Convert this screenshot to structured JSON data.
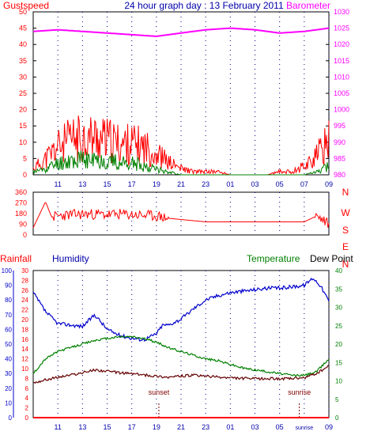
{
  "header": {
    "left": "Gustspeed",
    "title": "24 hour graph day : 13 February 2011",
    "right": "Barometer"
  },
  "colors": {
    "gust": "#ff0000",
    "wind": "#008000",
    "wind2": "#0000ff",
    "barometer": "#ff00ff",
    "direction": "#ff0000",
    "humidity": "#0000cc",
    "temperature": "#008000",
    "dewpoint": "#660000",
    "rainfall": "#ff0000",
    "frame": "#000000",
    "grid": "#000080",
    "label_red": "#ff0000",
    "label_blue": "#0000aa",
    "label_green": "#008000",
    "sun": "#800000"
  },
  "chart_data": [
    {
      "type": "line",
      "title": "24 hour graph day : 13 February 2011",
      "x_hours_start": 9,
      "x_ticks": [
        "11",
        "13",
        "15",
        "17",
        "19",
        "21",
        "23",
        "01",
        "03",
        "05",
        "07",
        "09"
      ],
      "left_axis": {
        "label": "Gustspeed",
        "ylim": [
          0,
          50
        ],
        "ticks": [
          "0",
          "5",
          "10",
          "15",
          "20",
          "25",
          "30",
          "35",
          "40",
          "45",
          "50"
        ]
      },
      "right_axis": {
        "label": "Barometer",
        "ylim": [
          980,
          1030
        ],
        "ticks": [
          "980",
          "985",
          "990",
          "995",
          "1000",
          "1005",
          "1010",
          "1015",
          "1020",
          "1025",
          "1030"
        ]
      },
      "series": [
        {
          "name": "Barometer",
          "axis": "right",
          "points": [
            [
              0,
              1024
            ],
            [
              2,
              1024.5
            ],
            [
              4,
              1024
            ],
            [
              6,
              1023.5
            ],
            [
              8,
              1023
            ],
            [
              10,
              1022.5
            ],
            [
              12,
              1023.5
            ],
            [
              14,
              1024.5
            ],
            [
              16,
              1025
            ],
            [
              18,
              1024.5
            ],
            [
              20,
              1023.5
            ],
            [
              22,
              1024
            ],
            [
              24,
              1025
            ]
          ]
        },
        {
          "name": "Gustspeed",
          "axis": "left",
          "points": [
            [
              0,
              2
            ],
            [
              1,
              5
            ],
            [
              2,
              9
            ],
            [
              3,
              11
            ],
            [
              4,
              12
            ],
            [
              5,
              12
            ],
            [
              6,
              11
            ],
            [
              7,
              10
            ],
            [
              8,
              10
            ],
            [
              9,
              9
            ],
            [
              10,
              7
            ],
            [
              11,
              4
            ],
            [
              12,
              2
            ],
            [
              13,
              1
            ],
            [
              14,
              1
            ],
            [
              15,
              1
            ],
            [
              16,
              0
            ],
            [
              17,
              0
            ],
            [
              18,
              0
            ],
            [
              19,
              0
            ],
            [
              20,
              1
            ],
            [
              21,
              1
            ],
            [
              22,
              3
            ],
            [
              23,
              6
            ],
            [
              24,
              11
            ]
          ]
        },
        {
          "name": "Windspeed",
          "axis": "left",
          "points": [
            [
              0,
              1
            ],
            [
              1,
              2
            ],
            [
              2,
              4
            ],
            [
              3,
              5
            ],
            [
              4,
              5
            ],
            [
              5,
              5
            ],
            [
              6,
              5
            ],
            [
              7,
              4
            ],
            [
              8,
              4
            ],
            [
              9,
              3
            ],
            [
              10,
              2
            ],
            [
              11,
              1
            ],
            [
              12,
              0
            ],
            [
              13,
              0
            ],
            [
              14,
              0
            ],
            [
              15,
              0
            ],
            [
              16,
              0
            ],
            [
              17,
              0
            ],
            [
              18,
              0
            ],
            [
              19,
              0
            ],
            [
              20,
              0
            ],
            [
              21,
              0
            ],
            [
              22,
              0
            ],
            [
              23,
              1
            ],
            [
              24,
              3
            ]
          ]
        }
      ]
    },
    {
      "type": "scatter",
      "x_hours_start": 9,
      "x_ticks": [
        "11",
        "13",
        "15",
        "17",
        "19",
        "21",
        "23",
        "01",
        "03",
        "05",
        "07",
        "09"
      ],
      "ylim": [
        0,
        360
      ],
      "y_ticks": [
        "0",
        "90",
        "180",
        "270",
        "360"
      ],
      "right_labels": [
        "N",
        "W",
        "S",
        "E",
        "N"
      ],
      "series": [
        {
          "name": "Wind direction",
          "points": [
            [
              0,
              60
            ],
            [
              1,
              280
            ],
            [
              1.5,
              150
            ],
            [
              2,
              160
            ],
            [
              3,
              170
            ],
            [
              4,
              175
            ],
            [
              5,
              175
            ],
            [
              6,
              170
            ],
            [
              7,
              175
            ],
            [
              8,
              170
            ],
            [
              9,
              165
            ],
            [
              10,
              160
            ],
            [
              11,
              140
            ],
            [
              12,
              130
            ],
            [
              13,
              120
            ],
            [
              14,
              110
            ],
            [
              16,
              110
            ],
            [
              18,
              110
            ],
            [
              20,
              110
            ],
            [
              22,
              110
            ],
            [
              23,
              160
            ],
            [
              24,
              90
            ]
          ]
        }
      ]
    },
    {
      "type": "line",
      "x_hours_start": 9,
      "x_ticks": [
        "11",
        "13",
        "15",
        "17",
        "19",
        "21",
        "23",
        "01",
        "03",
        "05",
        "sunrise",
        "09"
      ],
      "legend": [
        "Rainfall",
        "Humidity",
        "Temperature",
        "Dew Point"
      ],
      "rainfall_axis": {
        "ylim": [
          0,
          30
        ],
        "ticks": [
          "0",
          "2",
          "4",
          "6",
          "8",
          "10",
          "12",
          "14",
          "16",
          "18",
          "20",
          "22",
          "24",
          "26",
          "28",
          "30"
        ]
      },
      "humidity_axis": {
        "ylim": [
          0,
          100
        ],
        "ticks": [
          "0",
          "10",
          "20",
          "30",
          "40",
          "50",
          "60",
          "70",
          "80",
          "90",
          "100"
        ]
      },
      "temperature_axis": {
        "ylim": [
          0,
          40
        ],
        "ticks": [
          "0",
          "5",
          "10",
          "15",
          "20",
          "25",
          "30",
          "35",
          "40"
        ]
      },
      "annotations": [
        {
          "label": "sunset",
          "hour": 10.2
        },
        {
          "label": "sunrise",
          "hour": 21.6
        }
      ],
      "series": [
        {
          "name": "Humidity",
          "axis": "humidity",
          "points": [
            [
              0,
              85
            ],
            [
              1,
              72
            ],
            [
              2,
              64
            ],
            [
              3,
              63
            ],
            [
              4,
              62
            ],
            [
              5,
              70
            ],
            [
              6,
              60
            ],
            [
              7,
              56
            ],
            [
              8,
              54
            ],
            [
              9,
              53
            ],
            [
              10,
              57
            ],
            [
              10.5,
              63
            ],
            [
              11,
              63
            ],
            [
              12,
              67
            ],
            [
              13,
              74
            ],
            [
              14,
              80
            ],
            [
              15,
              83
            ],
            [
              16,
              85
            ],
            [
              17,
              86
            ],
            [
              18,
              87
            ],
            [
              19,
              88
            ],
            [
              20,
              88
            ],
            [
              21,
              89
            ],
            [
              22,
              90
            ],
            [
              22.7,
              95
            ],
            [
              23.3,
              90
            ],
            [
              24,
              79
            ]
          ]
        },
        {
          "name": "Temperature",
          "axis": "temperature",
          "points": [
            [
              0,
              12
            ],
            [
              1,
              16
            ],
            [
              2,
              18
            ],
            [
              3,
              19
            ],
            [
              4,
              20
            ],
            [
              5,
              21
            ],
            [
              6,
              21.5
            ],
            [
              7,
              22
            ],
            [
              8,
              22
            ],
            [
              9,
              21.5
            ],
            [
              10,
              20.5
            ],
            [
              11,
              19
            ],
            [
              12,
              18
            ],
            [
              13,
              17
            ],
            [
              14,
              16
            ],
            [
              15,
              15.5
            ],
            [
              16,
              14.5
            ],
            [
              17,
              13.5
            ],
            [
              18,
              13
            ],
            [
              19,
              12.5
            ],
            [
              20,
              12
            ],
            [
              21,
              11.5
            ],
            [
              22,
              11.5
            ],
            [
              23,
              12.5
            ],
            [
              24,
              16
            ]
          ]
        },
        {
          "name": "Dew Point",
          "axis": "temperature",
          "points": [
            [
              0,
              9.5
            ],
            [
              1,
              10.3
            ],
            [
              2,
              11
            ],
            [
              3,
              11.6
            ],
            [
              4,
              12.2
            ],
            [
              5,
              13
            ],
            [
              6,
              12.6
            ],
            [
              7,
              12.2
            ],
            [
              8,
              12
            ],
            [
              9,
              11.6
            ],
            [
              10,
              11.3
            ],
            [
              11,
              11
            ],
            [
              12,
              11.3
            ],
            [
              13,
              11.5
            ],
            [
              14,
              11.3
            ],
            [
              15,
              11
            ],
            [
              16,
              10.8
            ],
            [
              17,
              10.7
            ],
            [
              18,
              10.6
            ],
            [
              19,
              10.6
            ],
            [
              20,
              10.6
            ],
            [
              21,
              10.6
            ],
            [
              22,
              10.8
            ],
            [
              23,
              12
            ],
            [
              24,
              14
            ]
          ]
        },
        {
          "name": "Rainfall",
          "axis": "rainfall",
          "points": [
            [
              0,
              0
            ],
            [
              24,
              0
            ]
          ]
        }
      ]
    }
  ]
}
